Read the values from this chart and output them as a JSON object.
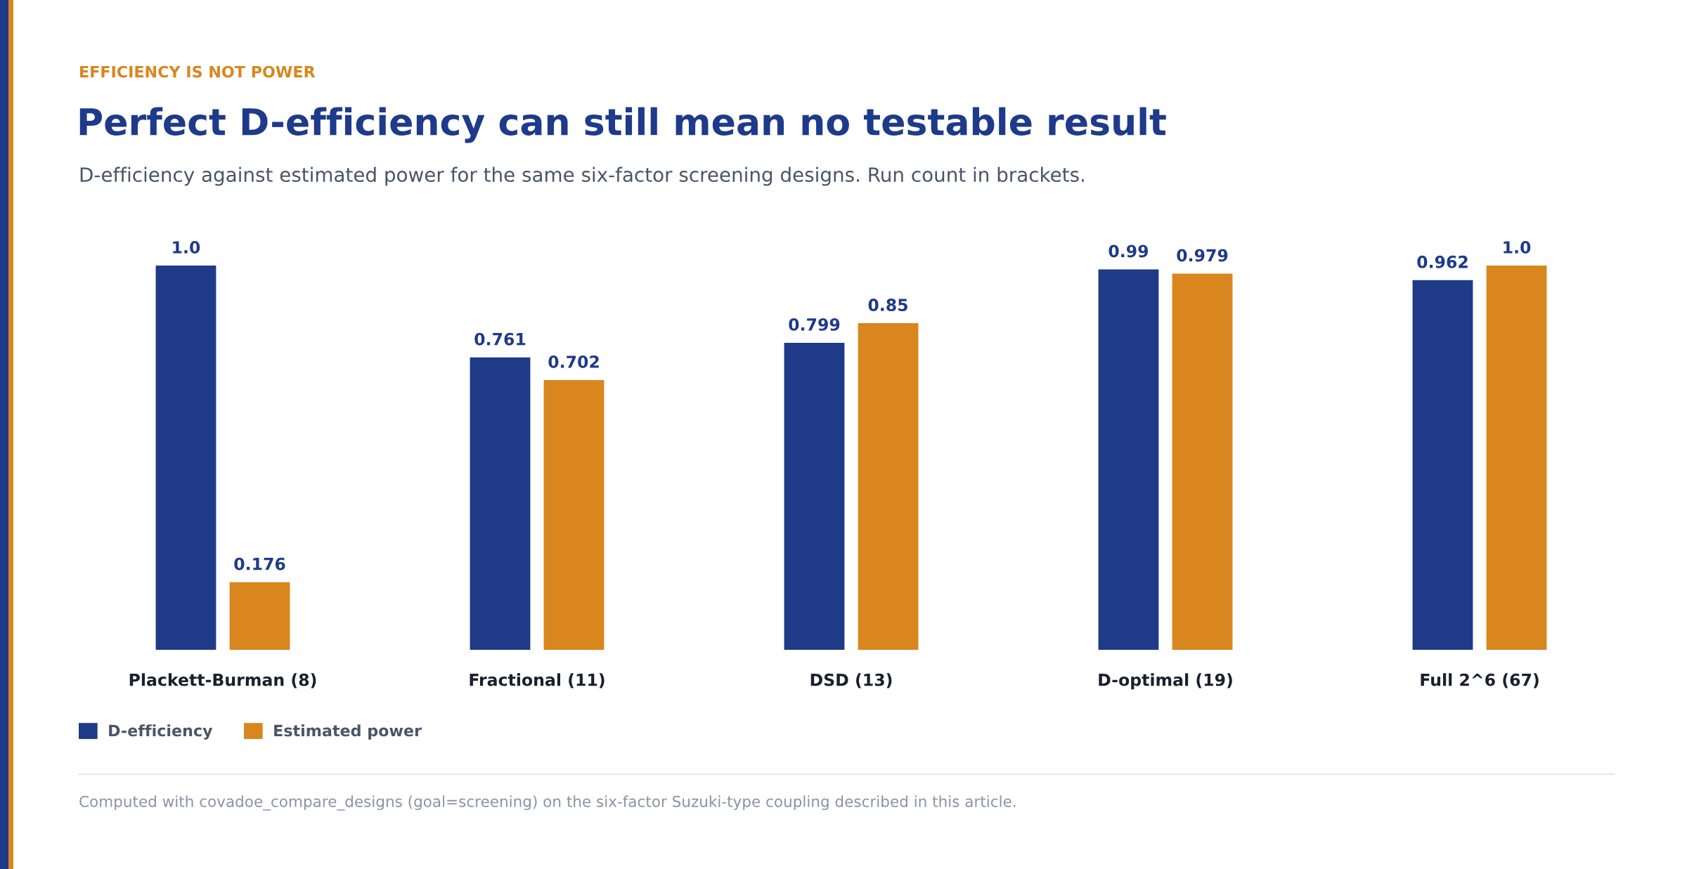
{
  "chart_data": {
    "type": "bar",
    "title": "Perfect D-efficiency can still mean no testable result",
    "subtitle": "D-efficiency against estimated power for the same six-factor screening designs. Run count in brackets.",
    "annotations": [
      "EFFICIENCY IS NOT POWER",
      "Computed with covadoe_compare_designs (goal=screening) on the six-factor Suzuki-type coupling described in this article."
    ],
    "categories": [
      "Plackett-Burman (8)",
      "Fractional (11)",
      "DSD (13)",
      "D-optimal (19)",
      "Full 2^6 (67)"
    ],
    "series": [
      {
        "name": "D-efficiency",
        "color": "#1f3a87",
        "values": [
          1.0,
          0.761,
          0.799,
          0.99,
          0.962
        ],
        "value_labels": [
          "1.0",
          "0.761",
          "0.799",
          "0.99",
          "0.962"
        ]
      },
      {
        "name": "Estimated power",
        "color": "#d9861e",
        "values": [
          0.176,
          0.702,
          0.85,
          0.979,
          1.0
        ],
        "value_labels": [
          "0.176",
          "0.702",
          "0.85",
          "0.979",
          "1.0"
        ]
      }
    ],
    "legend": "bottom left",
    "grid": false,
    "tick_labels": "x"
  }
}
